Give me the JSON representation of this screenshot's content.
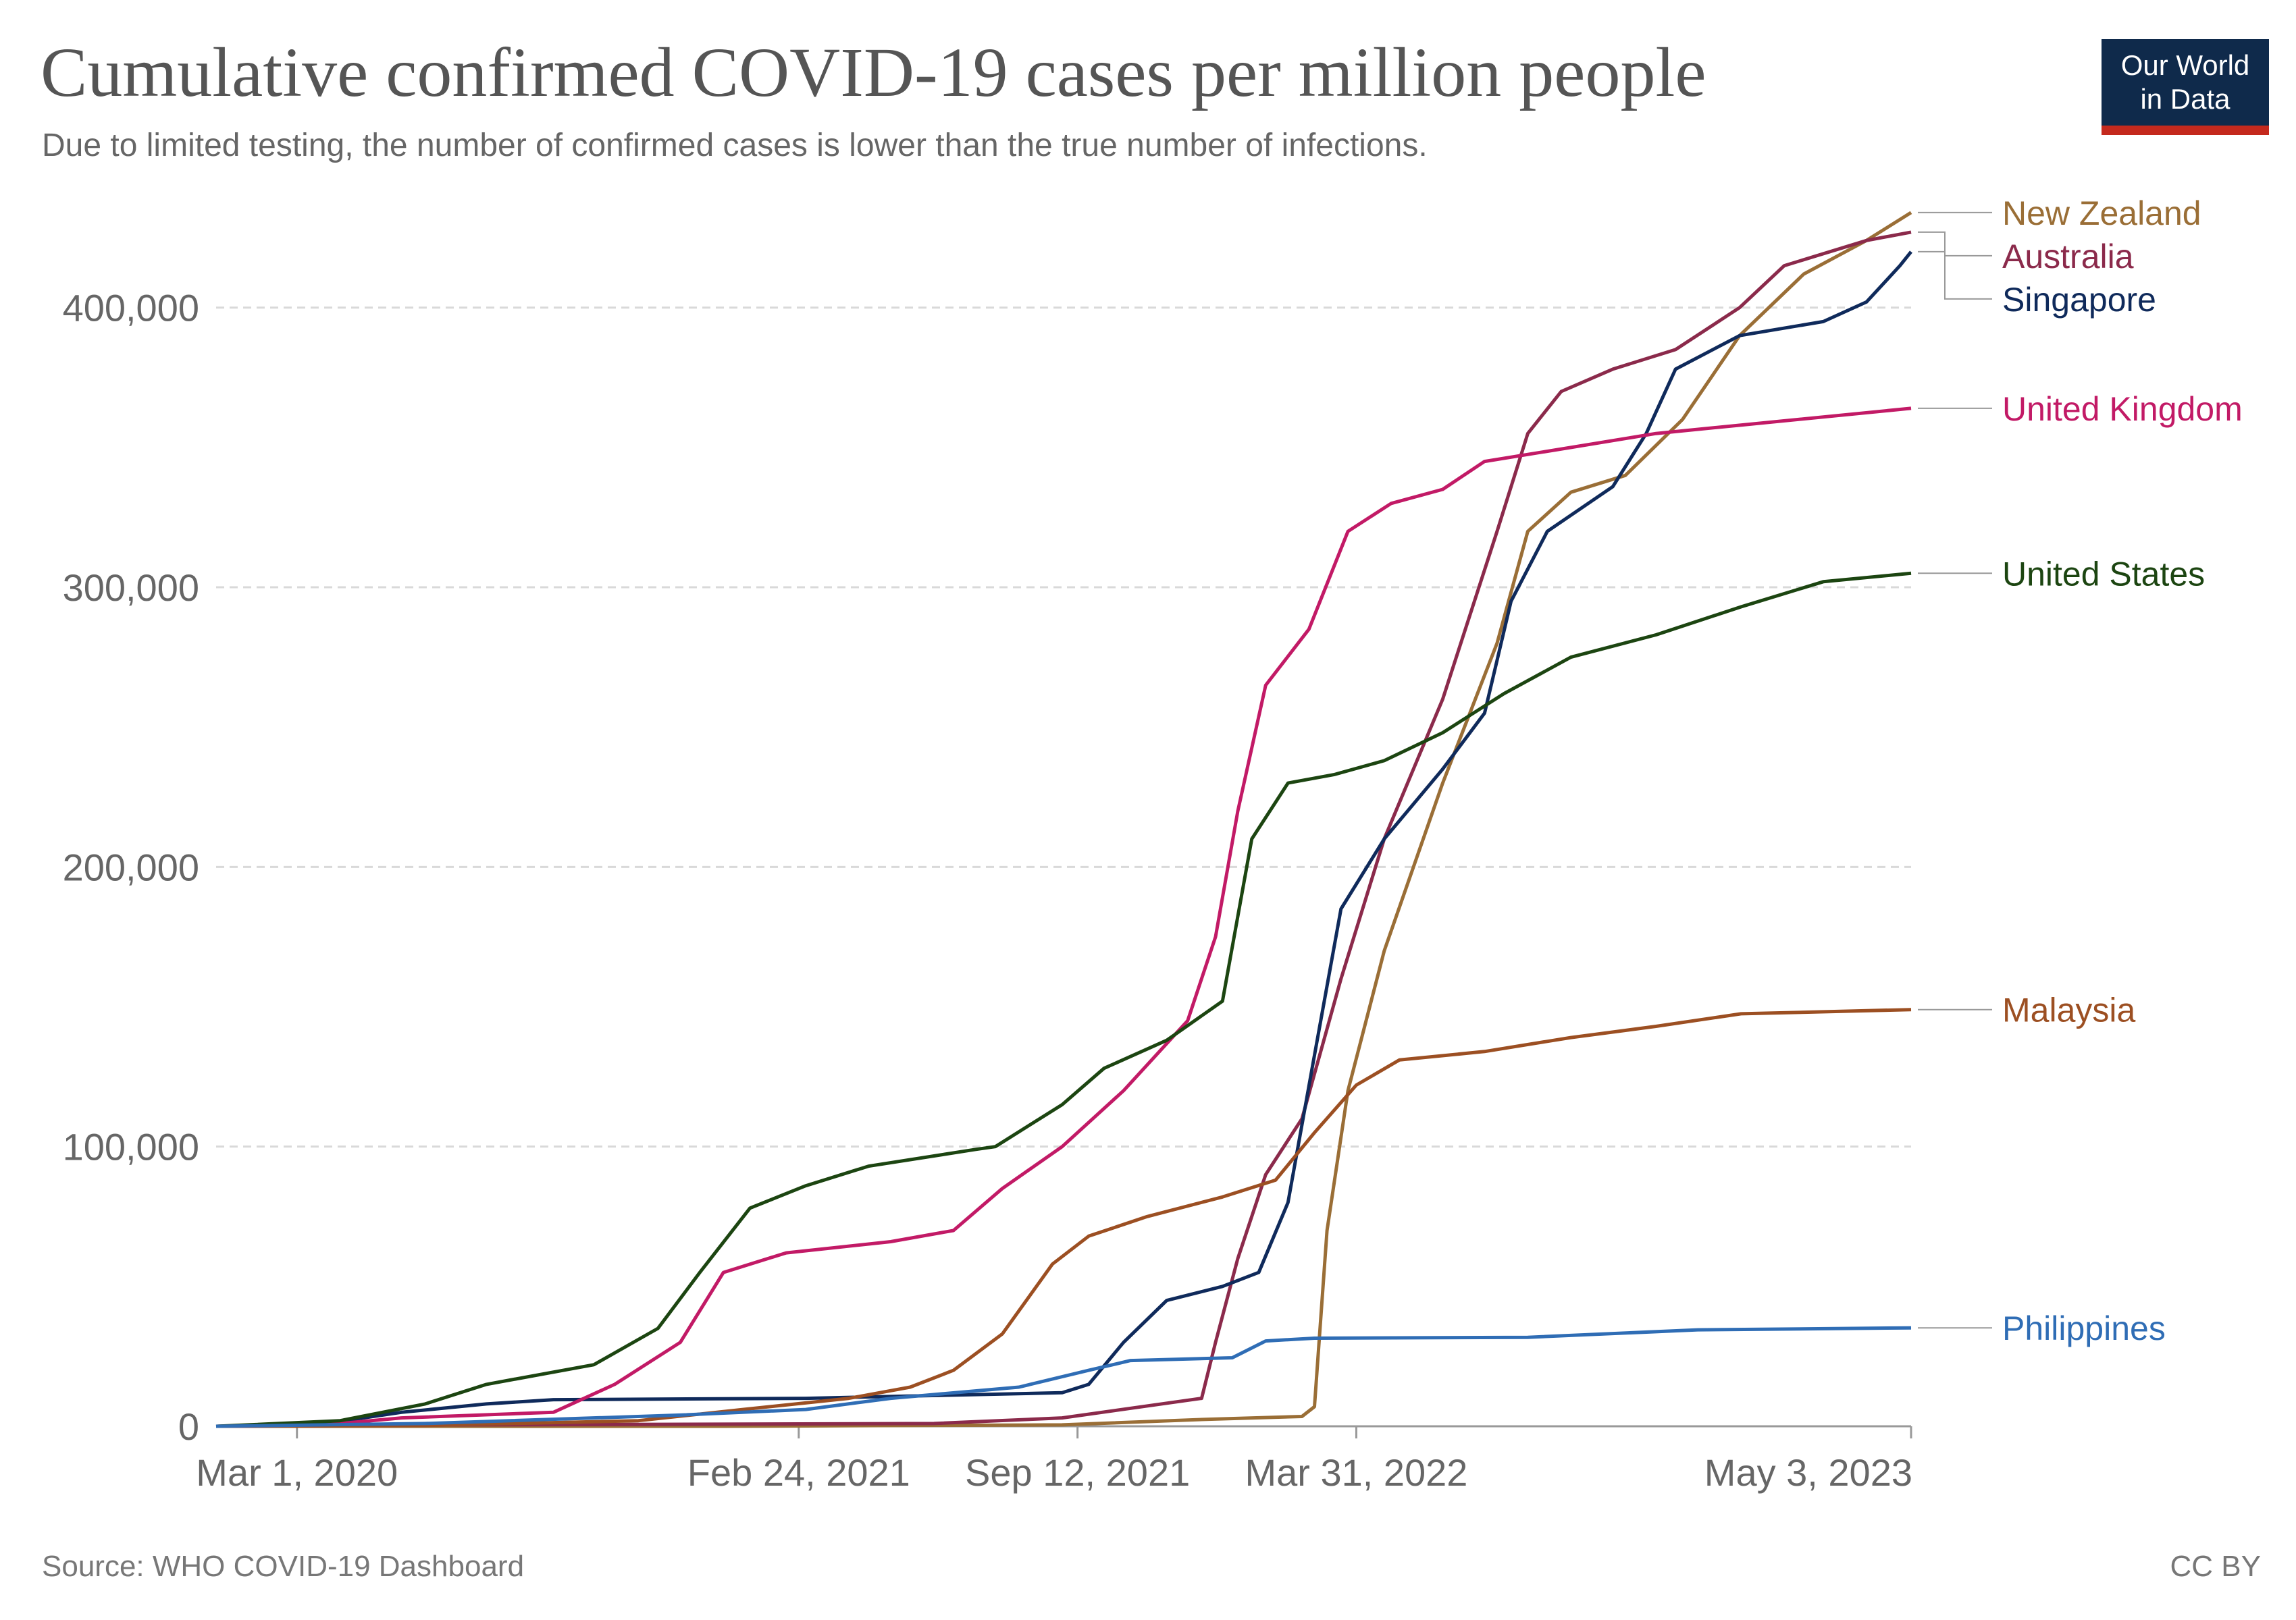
{
  "title": "Cumulative confirmed COVID-19 cases per million people",
  "subtitle": "Due to limited testing, the number of confirmed cases is lower than the true number of infections.",
  "logo": {
    "line1": "Our World",
    "line2": "in Data"
  },
  "footer": {
    "source": "Source: WHO COVID-19 Dashboard",
    "license": "CC BY"
  },
  "chart_data": {
    "type": "line",
    "xlabel": "",
    "ylabel": "",
    "ylim": [
      0,
      440000
    ],
    "xlim": [
      "2020-01-03",
      "2023-05-03"
    ],
    "grid": "horizontal dashed",
    "legend": "right, labels at line ends",
    "y_ticks": [
      {
        "value": 0,
        "label": "0"
      },
      {
        "value": 100000,
        "label": "100,000"
      },
      {
        "value": 200000,
        "label": "200,000"
      },
      {
        "value": 300000,
        "label": "300,000"
      },
      {
        "value": 400000,
        "label": "400,000"
      }
    ],
    "x_ticks": [
      {
        "date": "2020-03-01",
        "label": "Mar 1, 2020"
      },
      {
        "date": "2021-02-24",
        "label": "Feb 24, 2021"
      },
      {
        "date": "2021-09-12",
        "label": "Sep 12, 2021"
      },
      {
        "date": "2022-03-31",
        "label": "Mar 31, 2022"
      },
      {
        "date": "2023-05-03",
        "label": "May 3, 2023"
      }
    ],
    "series": [
      {
        "name": "New Zealand",
        "color": "#9a6e36",
        "points": [
          [
            "2020-01-03",
            0
          ],
          [
            "2021-01-01",
            0
          ],
          [
            "2021-09-01",
            500
          ],
          [
            "2021-12-15",
            2500
          ],
          [
            "2022-02-20",
            3500
          ],
          [
            "2022-03-01",
            7000
          ],
          [
            "2022-03-10",
            70000
          ],
          [
            "2022-03-25",
            120000
          ],
          [
            "2022-04-20",
            170000
          ],
          [
            "2022-06-01",
            230000
          ],
          [
            "2022-07-10",
            280000
          ],
          [
            "2022-08-01",
            320000
          ],
          [
            "2022-09-01",
            334000
          ],
          [
            "2022-10-10",
            340000
          ],
          [
            "2022-11-20",
            360000
          ],
          [
            "2022-12-31",
            390000
          ],
          [
            "2023-02-15",
            412000
          ],
          [
            "2023-04-01",
            424000
          ],
          [
            "2023-05-03",
            434000
          ]
        ]
      },
      {
        "name": "Australia",
        "color": "#8b2a4b",
        "points": [
          [
            "2020-01-03",
            0
          ],
          [
            "2020-07-01",
            500
          ],
          [
            "2021-06-01",
            1000
          ],
          [
            "2021-09-01",
            3000
          ],
          [
            "2021-12-10",
            10000
          ],
          [
            "2021-12-20",
            30000
          ],
          [
            "2022-01-05",
            60000
          ],
          [
            "2022-01-25",
            90000
          ],
          [
            "2022-02-20",
            110000
          ],
          [
            "2022-03-20",
            160000
          ],
          [
            "2022-04-20",
            210000
          ],
          [
            "2022-06-01",
            260000
          ],
          [
            "2022-07-10",
            320000
          ],
          [
            "2022-08-01",
            355000
          ],
          [
            "2022-08-25",
            370000
          ],
          [
            "2022-10-01",
            378000
          ],
          [
            "2022-11-15",
            385000
          ],
          [
            "2022-12-31",
            400000
          ],
          [
            "2023-02-01",
            415000
          ],
          [
            "2023-04-01",
            424000
          ],
          [
            "2023-05-03",
            427000
          ]
        ]
      },
      {
        "name": "Singapore",
        "color": "#0f2a5b",
        "points": [
          [
            "2020-01-03",
            0
          ],
          [
            "2020-03-15",
            500
          ],
          [
            "2020-05-15",
            5000
          ],
          [
            "2020-07-15",
            8000
          ],
          [
            "2020-09-01",
            9500
          ],
          [
            "2021-03-01",
            10000
          ],
          [
            "2021-09-01",
            12000
          ],
          [
            "2021-09-20",
            15000
          ],
          [
            "2021-10-15",
            30000
          ],
          [
            "2021-11-15",
            45000
          ],
          [
            "2021-12-25",
            50000
          ],
          [
            "2022-01-20",
            55000
          ],
          [
            "2022-02-10",
            80000
          ],
          [
            "2022-02-28",
            130000
          ],
          [
            "2022-03-20",
            185000
          ],
          [
            "2022-04-20",
            210000
          ],
          [
            "2022-06-01",
            235000
          ],
          [
            "2022-07-01",
            255000
          ],
          [
            "2022-07-20",
            295000
          ],
          [
            "2022-08-15",
            320000
          ],
          [
            "2022-10-01",
            336000
          ],
          [
            "2022-10-25",
            355000
          ],
          [
            "2022-11-15",
            378000
          ],
          [
            "2022-12-31",
            390000
          ],
          [
            "2023-03-01",
            395000
          ],
          [
            "2023-04-01",
            402000
          ],
          [
            "2023-04-25",
            415000
          ],
          [
            "2023-05-03",
            420000
          ]
        ]
      },
      {
        "name": "United Kingdom",
        "color": "#c21a66",
        "points": [
          [
            "2020-01-03",
            0
          ],
          [
            "2020-03-15",
            200
          ],
          [
            "2020-05-15",
            3000
          ],
          [
            "2020-09-01",
            5000
          ],
          [
            "2020-10-15",
            15000
          ],
          [
            "2020-12-01",
            30000
          ],
          [
            "2021-01-01",
            55000
          ],
          [
            "2021-02-15",
            62000
          ],
          [
            "2021-05-01",
            66000
          ],
          [
            "2021-06-15",
            70000
          ],
          [
            "2021-07-20",
            85000
          ],
          [
            "2021-09-01",
            100000
          ],
          [
            "2021-10-15",
            120000
          ],
          [
            "2021-11-30",
            145000
          ],
          [
            "2021-12-20",
            175000
          ],
          [
            "2022-01-05",
            220000
          ],
          [
            "2022-01-25",
            265000
          ],
          [
            "2022-02-25",
            285000
          ],
          [
            "2022-03-25",
            320000
          ],
          [
            "2022-04-25",
            330000
          ],
          [
            "2022-06-01",
            335000
          ],
          [
            "2022-07-01",
            345000
          ],
          [
            "2022-09-01",
            350000
          ],
          [
            "2022-11-01",
            355000
          ],
          [
            "2023-01-01",
            358000
          ],
          [
            "2023-05-03",
            364000
          ]
        ]
      },
      {
        "name": "United States",
        "color": "#1c4511",
        "points": [
          [
            "2020-01-03",
            0
          ],
          [
            "2020-04-01",
            2000
          ],
          [
            "2020-06-01",
            8000
          ],
          [
            "2020-07-15",
            15000
          ],
          [
            "2020-09-30",
            22000
          ],
          [
            "2020-11-15",
            35000
          ],
          [
            "2020-12-15",
            55000
          ],
          [
            "2021-01-20",
            78000
          ],
          [
            "2021-03-01",
            86000
          ],
          [
            "2021-04-15",
            93000
          ],
          [
            "2021-07-01",
            99000
          ],
          [
            "2021-07-15",
            100000
          ],
          [
            "2021-09-01",
            115000
          ],
          [
            "2021-10-01",
            128000
          ],
          [
            "2021-11-15",
            138000
          ],
          [
            "2021-12-25",
            152000
          ],
          [
            "2022-01-15",
            210000
          ],
          [
            "2022-02-10",
            230000
          ],
          [
            "2022-03-15",
            233000
          ],
          [
            "2022-04-20",
            238000
          ],
          [
            "2022-06-01",
            248000
          ],
          [
            "2022-07-15",
            262000
          ],
          [
            "2022-09-01",
            275000
          ],
          [
            "2022-11-01",
            283000
          ],
          [
            "2023-01-01",
            293000
          ],
          [
            "2023-03-01",
            302000
          ],
          [
            "2023-05-03",
            305000
          ]
        ]
      },
      {
        "name": "Malaysia",
        "color": "#9c4f22",
        "points": [
          [
            "2020-01-03",
            0
          ],
          [
            "2020-06-01",
            300
          ],
          [
            "2020-11-01",
            2000
          ],
          [
            "2021-01-15",
            6000
          ],
          [
            "2021-04-01",
            10000
          ],
          [
            "2021-05-15",
            14000
          ],
          [
            "2021-06-15",
            20000
          ],
          [
            "2021-07-20",
            33000
          ],
          [
            "2021-08-25",
            58000
          ],
          [
            "2021-09-20",
            68000
          ],
          [
            "2021-11-01",
            75000
          ],
          [
            "2021-12-25",
            82000
          ],
          [
            "2022-02-01",
            88000
          ],
          [
            "2022-03-01",
            105000
          ],
          [
            "2022-03-31",
            122000
          ],
          [
            "2022-05-01",
            131000
          ],
          [
            "2022-07-01",
            134000
          ],
          [
            "2022-09-01",
            139000
          ],
          [
            "2022-11-01",
            143000
          ],
          [
            "2023-01-01",
            147500
          ],
          [
            "2023-05-03",
            149000
          ]
        ]
      },
      {
        "name": "Philippines",
        "color": "#2f6db5",
        "points": [
          [
            "2020-01-03",
            0
          ],
          [
            "2020-06-01",
            1000
          ],
          [
            "2020-12-01",
            4000
          ],
          [
            "2021-03-01",
            6000
          ],
          [
            "2021-05-01",
            10000
          ],
          [
            "2021-08-01",
            14000
          ],
          [
            "2021-09-20",
            20000
          ],
          [
            "2021-10-20",
            23500
          ],
          [
            "2022-01-01",
            24500
          ],
          [
            "2022-01-25",
            30500
          ],
          [
            "2022-03-01",
            31500
          ],
          [
            "2022-08-01",
            31800
          ],
          [
            "2022-12-01",
            34500
          ],
          [
            "2023-05-03",
            35200
          ]
        ]
      }
    ]
  }
}
